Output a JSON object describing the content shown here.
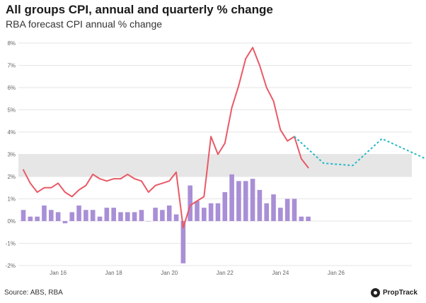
{
  "header": {
    "title": "All groups CPI, annual and quarterly % change",
    "subtitle": "RBA forecast CPI annual % change"
  },
  "footer": {
    "source": "Source: ABS, RBA",
    "brand": "PropTrack"
  },
  "colors": {
    "quarterly_bars": "#a98fd6",
    "annual_line": "#e95a66",
    "forecast_line": "#21b8c7",
    "target_band": "#e6e6e6",
    "grid": "#e6e6e6"
  },
  "chart_data": {
    "type": "bar+line",
    "ylim": [
      -2,
      8
    ],
    "y_ticks": [
      -2,
      -1,
      0,
      1,
      2,
      3,
      4,
      5,
      6,
      7,
      8
    ],
    "y_tick_labels": [
      "-2%",
      "-1%",
      "0%",
      "1%",
      "2%",
      "3%",
      "4%",
      "5%",
      "6%",
      "7%",
      "8%"
    ],
    "x_start": "2014-Q4",
    "x_ticks": [
      {
        "label": "Jan 16",
        "quarter_index": 5
      },
      {
        "label": "Jan 18",
        "quarter_index": 13
      },
      {
        "label": "Jan 20",
        "quarter_index": 21
      },
      {
        "label": "Jan 22",
        "quarter_index": 29
      },
      {
        "label": "Jan 24",
        "quarter_index": 37
      },
      {
        "label": "Jan 26",
        "quarter_index": 45
      }
    ],
    "x_quarter_count": 50,
    "target_band": [
      2,
      3
    ],
    "grid": true,
    "series": [
      {
        "type": "bar",
        "values": [
          0.5,
          0.2,
          0.2,
          0.7,
          0.5,
          0.4,
          -0.1,
          0.4,
          0.7,
          0.5,
          0.5,
          0.2,
          0.6,
          0.6,
          0.4,
          0.4,
          0.4,
          0.5,
          0.0,
          0.6,
          0.5,
          0.7,
          0.3,
          -1.9,
          1.6,
          0.9,
          0.6,
          0.8,
          0.8,
          1.3,
          2.1,
          1.8,
          1.8,
          1.9,
          1.4,
          0.8,
          1.2,
          0.6,
          1.0,
          1.0,
          0.2,
          0.2
        ]
      },
      {
        "type": "line",
        "values": [
          2.3,
          1.7,
          1.3,
          1.5,
          1.5,
          1.7,
          1.3,
          1.1,
          1.4,
          1.6,
          2.1,
          1.9,
          1.8,
          1.9,
          1.9,
          2.1,
          1.9,
          1.8,
          1.3,
          1.6,
          1.7,
          1.8,
          2.2,
          -0.3,
          0.7,
          0.9,
          1.1,
          3.8,
          3.0,
          3.5,
          5.1,
          6.1,
          7.3,
          7.8,
          7.0,
          6.0,
          5.4,
          4.1,
          3.6,
          3.8,
          2.8,
          2.4
        ]
      },
      {
        "type": "line",
        "dashed": true,
        "start_index": 39,
        "values": [
          3.8,
          2.6,
          2.5,
          3.7,
          3.1,
          2.5
        ]
      }
    ]
  }
}
